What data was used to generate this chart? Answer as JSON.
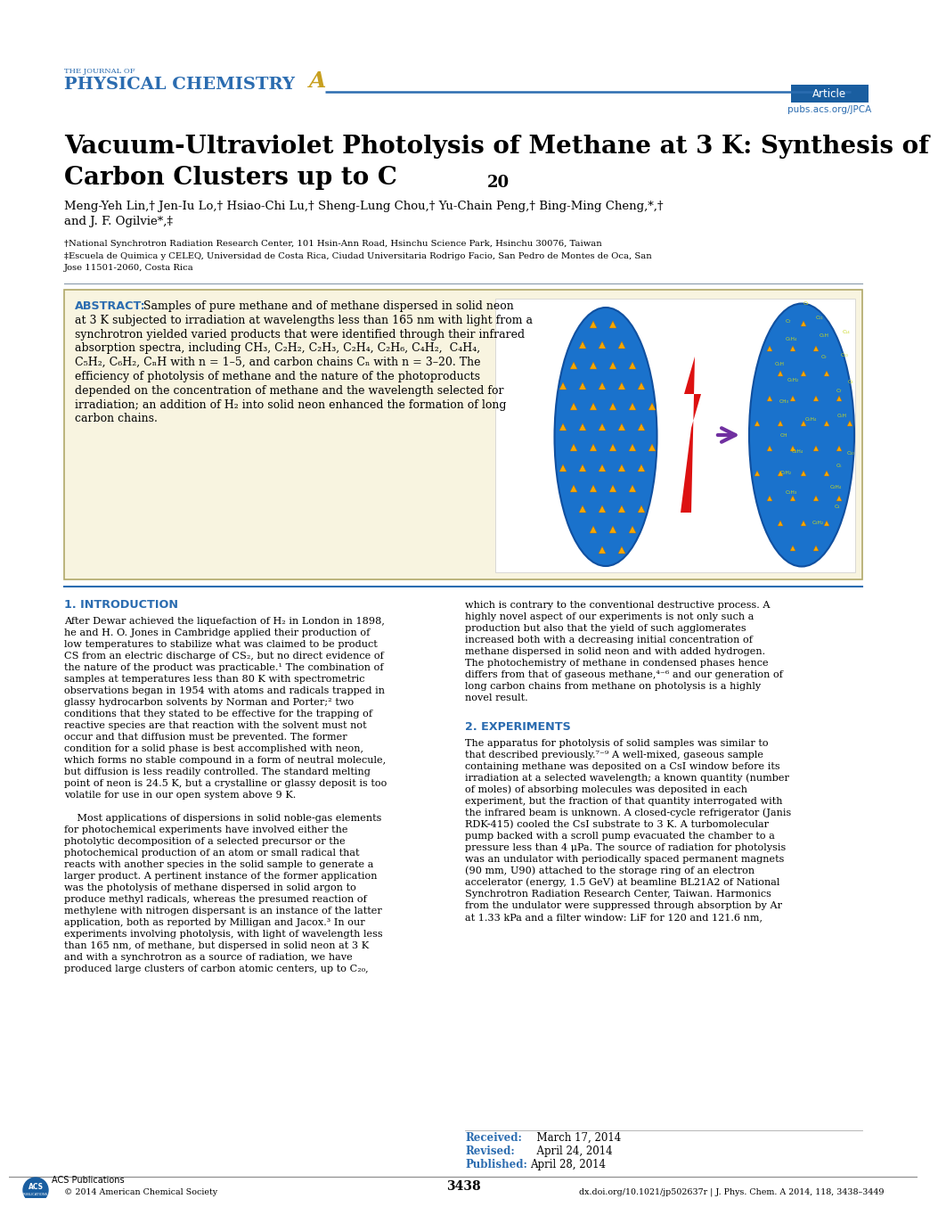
{
  "bg_color": "#ffffff",
  "header_line_color": "#2b6cb0",
  "header_text_color": "#2b6cb0",
  "journal_small": "THE JOURNAL OF",
  "journal_large": "PHYSICAL CHEMISTRY",
  "journal_A_color": "#c8a020",
  "article_box_color": "#1a5ea0",
  "article_text": "Article",
  "url_text": "pubs.acs.org/JPCA",
  "title_line1": "Vacuum-Ultraviolet Photolysis of Methane at 3 K: Synthesis of",
  "title_line2": "Carbon Clusters up to C",
  "title_sub": "20",
  "authors_line1": "Meng-Yeh Lin,† Jen-Iu Lo,† Hsiao-Chi Lu,† Sheng-Lung Chou,† Yu-Chain Peng,† Bing-Ming Cheng,*,†",
  "authors_line2": "and J. F. Ogilvie*,‡",
  "affil1": "†National Synchrotron Radiation Research Center, 101 Hsin-Ann Road, Hsinchu Science Park, Hsinchu 30076, Taiwan",
  "affil2_line1": "‡Escuela de Quimica y CELEQ, Universidad de Costa Rica, Ciudad Universitaria Rodrigo Facio, San Pedro de Montes de Oca, San",
  "affil2_line2": "Jose 11501-2060, Costa Rica",
  "abstract_bg": "#f8f4e0",
  "abstract_border": "#b0a868",
  "abstract_label_color": "#2b6cb0",
  "abstract_label": "ABSTRACT:",
  "abstract_lines": [
    "Samples of pure methane and of methane dispersed in solid neon",
    "at 3 K subjected to irradiation at wavelengths less than 165 nm with light from a",
    "synchrotron yielded varied products that were identified through their infrared",
    "absorption spectra, including CH₃, C₂H₂, C₂H₃, C₂H₄, C₂H₆, C₄H₂,  C₄H₄,",
    "C₅H₂, C₆H₂, CₙH with n = 1–5, and carbon chains Cₙ with n = 3–20. The",
    "efficiency of photolysis of methane and the nature of the photoproducts",
    "depended on the concentration of methane and the wavelength selected for",
    "irradiation; an addition of H₂ into solid neon enhanced the formation of long",
    "carbon chains."
  ],
  "section1_title": "1. INTRODUCTION",
  "section1_color": "#2b6cb0",
  "intro_col1_lines": [
    "After Dewar achieved the liquefaction of H₂ in London in 1898,",
    "he and H. O. Jones in Cambridge applied their production of",
    "low temperatures to stabilize what was claimed to be product",
    "CS from an electric discharge of CS₂, but no direct evidence of",
    "the nature of the product was practicable.¹ The combination of",
    "samples at temperatures less than 80 K with spectrometric",
    "observations began in 1954 with atoms and radicals trapped in",
    "glassy hydrocarbon solvents by Norman and Porter;² two",
    "conditions that they stated to be effective for the trapping of",
    "reactive species are that reaction with the solvent must not",
    "occur and that diffusion must be prevented. The former",
    "condition for a solid phase is best accomplished with neon,",
    "which forms no stable compound in a form of neutral molecule,",
    "but diffusion is less readily controlled. The standard melting",
    "point of neon is 24.5 K, but a crystalline or glassy deposit is too",
    "volatile for use in our open system above 9 K.",
    "",
    "    Most applications of dispersions in solid noble-gas elements",
    "for photochemical experiments have involved either the",
    "photolytic decomposition of a selected precursor or the",
    "photochemical production of an atom or small radical that",
    "reacts with another species in the solid sample to generate a",
    "larger product. A pertinent instance of the former application",
    "was the photolysis of methane dispersed in solid argon to",
    "produce methyl radicals, whereas the presumed reaction of",
    "methylene with nitrogen dispersant is an instance of the latter",
    "application, both as reported by Milligan and Jacox.³ In our",
    "experiments involving photolysis, with light of wavelength less",
    "than 165 nm, of methane, but dispersed in solid neon at 3 K",
    "and with a synchrotron as a source of radiation, we have",
    "produced large clusters of carbon atomic centers, up to C₂₀,"
  ],
  "intro_col2_lines": [
    "which is contrary to the conventional destructive process. A",
    "highly novel aspect of our experiments is not only such a",
    "production but also that the yield of such agglomerates",
    "increased both with a decreasing initial concentration of",
    "methane dispersed in solid neon and with added hydrogen.",
    "The photochemistry of methane in condensed phases hence",
    "differs from that of gaseous methane,⁴⁻⁶ and our generation of",
    "long carbon chains from methane on photolysis is a highly",
    "novel result."
  ],
  "section2_title": "2. EXPERIMENTS",
  "section2_color": "#2b6cb0",
  "exp_lines": [
    "The apparatus for photolysis of solid samples was similar to",
    "that described previously.⁷⁻⁹ A well-mixed, gaseous sample",
    "containing methane was deposited on a CsI window before its",
    "irradiation at a selected wavelength; a known quantity (number",
    "of moles) of absorbing molecules was deposited in each",
    "experiment, but the fraction of that quantity interrogated with",
    "the infrared beam is unknown. A closed-cycle refrigerator (Janis",
    "RDK-415) cooled the CsI substrate to 3 K. A turbomolecular",
    "pump backed with a scroll pump evacuated the chamber to a",
    "pressure less than 4 μPa. The source of radiation for photolysis",
    "was an undulator with periodically spaced permanent magnets",
    "(90 mm, U90) attached to the storage ring of an electron",
    "accelerator (energy, 1.5 GeV) at beamline BL21A2 of National",
    "Synchrotron Radiation Research Center, Taiwan. Harmonics",
    "from the undulator were suppressed through absorption by Ar",
    "at 1.33 kPa and a filter window: LiF for 120 and 121.6 nm,"
  ],
  "received_label": "Received:",
  "received_date": "  March 17, 2014",
  "revised_label": "Revised:",
  "revised_date": "  April 24, 2014",
  "published_label": "Published:",
  "published_date": "April 28, 2014",
  "footer_copyright": "© 2014 American Chemical Society",
  "footer_page": "3438",
  "footer_doi": "dx.doi.org/10.1021/jp502637r | J. Phys. Chem. A 2014, 118, 3438–3449",
  "right_oval_labels": [
    [
      "C₄H₂",
      18,
      -98
    ],
    [
      "C₄",
      40,
      -80
    ],
    [
      "C₂H₃",
      -12,
      -65
    ],
    [
      "C₄H₄",
      38,
      -58
    ],
    [
      "C₂H₂",
      -18,
      -42
    ],
    [
      "C₆",
      42,
      -35
    ],
    [
      "C₁₀",
      55,
      -20
    ],
    [
      "C₄H₄",
      -5,
      -18
    ],
    [
      "CH",
      -20,
      0
    ],
    [
      "C₆H₄",
      10,
      18
    ],
    [
      "C₅H",
      45,
      22
    ],
    [
      "CH₃",
      -20,
      38
    ],
    [
      "C₇",
      42,
      50
    ],
    [
      "C₈",
      55,
      60
    ],
    [
      "C₆H₂",
      -10,
      62
    ],
    [
      "C₅H",
      -25,
      80
    ],
    [
      "C₉",
      25,
      88
    ],
    [
      "C₁₀",
      48,
      90
    ],
    [
      "C₆H₄",
      -12,
      108
    ],
    [
      "C₅H",
      25,
      112
    ],
    [
      "C₁₄",
      50,
      115
    ],
    [
      "C₇",
      -15,
      128
    ],
    [
      "C₁₁",
      20,
      132
    ],
    [
      "C₃",
      5,
      148
    ]
  ]
}
